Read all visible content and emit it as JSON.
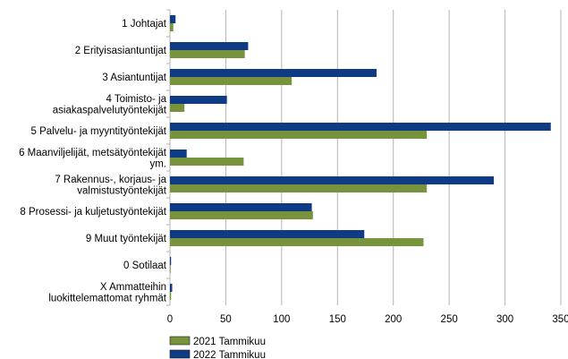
{
  "chart_data": {
    "type": "bar",
    "orientation": "horizontal",
    "title": "",
    "xlabel": "",
    "ylabel": "",
    "xlim": [
      0,
      350
    ],
    "xticks": [
      0,
      50,
      100,
      150,
      200,
      250,
      300,
      350
    ],
    "grid": "vertical",
    "legend_position": "bottom-left",
    "categories": [
      [
        "1 Johtajat"
      ],
      [
        "2 Erityisasiantuntijat"
      ],
      [
        "3 Asiantuntijat"
      ],
      [
        "4 Toimisto- ja",
        "asiakaspalvelutyöntekijät"
      ],
      [
        "5 Palvelu- ja myyntityöntekijät"
      ],
      [
        "6 Maanviljelijät, metsätyöntekijät",
        "ym."
      ],
      [
        "7 Rakennus-, korjaus- ja",
        "valmistustyöntekijät"
      ],
      [
        "8 Prosessi- ja kuljetustyöntekijät"
      ],
      [
        "9 Muut työntekijät"
      ],
      [
        "0 Sotilaat"
      ],
      [
        "X Ammatteihin",
        "luokittelemattomat ryhmät"
      ]
    ],
    "series": [
      {
        "name": "2021 Tammikuu",
        "color": "#77933c",
        "values": [
          3,
          67,
          109,
          13,
          230,
          66,
          230,
          128,
          227,
          0,
          1
        ]
      },
      {
        "name": "2022 Tammikuu",
        "color": "#0f3b85",
        "values": [
          5,
          70,
          185,
          51,
          341,
          15,
          290,
          127,
          174,
          1,
          2
        ]
      }
    ]
  }
}
